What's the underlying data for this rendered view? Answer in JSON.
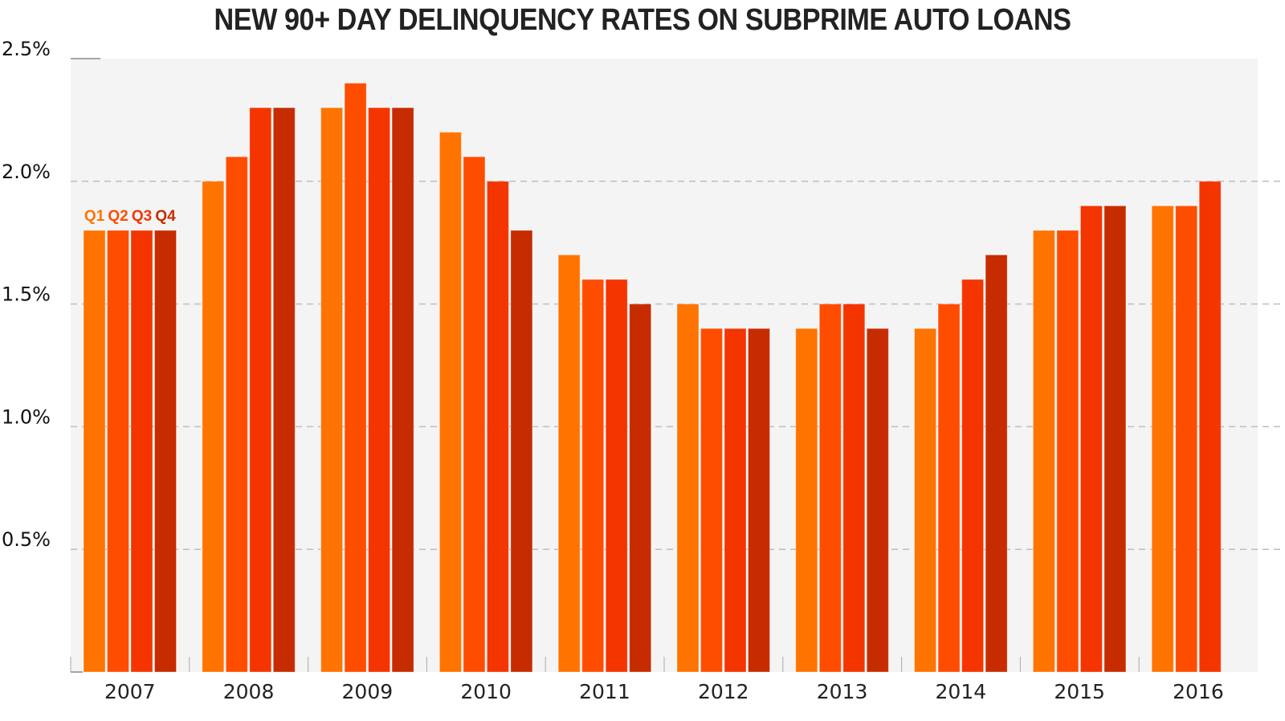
{
  "chart_data": {
    "type": "bar",
    "title": "NEW 90+ DAY DELINQUENCY RATES ON SUBPRIME AUTO LOANS",
    "xlabel": "",
    "ylabel": "",
    "ylim": [
      0,
      2.5
    ],
    "yticks": [
      0.5,
      1.0,
      1.5,
      2.0,
      2.5
    ],
    "ytick_labels": [
      "0.5%",
      "1.0%",
      "1.5%",
      "2.0%",
      "2.5%"
    ],
    "grid": true,
    "categories": [
      "2007",
      "2008",
      "2009",
      "2010",
      "2011",
      "2012",
      "2013",
      "2014",
      "2015",
      "2016"
    ],
    "series": [
      {
        "name": "Q1",
        "color": "#ff7300",
        "values": [
          1.8,
          2.0,
          2.3,
          2.2,
          1.7,
          1.5,
          1.4,
          1.4,
          1.8,
          1.9
        ]
      },
      {
        "name": "Q2",
        "color": "#ff4d00",
        "values": [
          1.8,
          2.1,
          2.4,
          2.1,
          1.6,
          1.4,
          1.5,
          1.5,
          1.8,
          1.9
        ]
      },
      {
        "name": "Q3",
        "color": "#f43500",
        "values": [
          1.8,
          2.3,
          2.3,
          2.0,
          1.6,
          1.4,
          1.5,
          1.6,
          1.9,
          2.0
        ]
      },
      {
        "name": "Q4",
        "color": "#c62c00",
        "values": [
          1.8,
          2.3,
          2.3,
          1.8,
          1.5,
          1.4,
          1.4,
          1.7,
          1.9,
          null
        ]
      }
    ],
    "legend": "inline above first group"
  }
}
